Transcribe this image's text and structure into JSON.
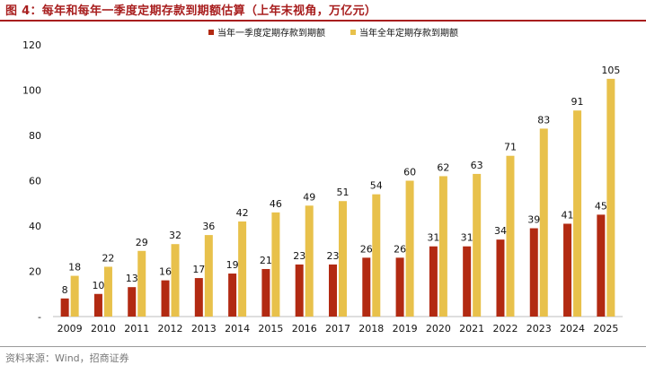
{
  "header": {
    "title": "图 4：每年和每年一季度定期存款到期额估算（上年末视角，万亿元）"
  },
  "footer": {
    "source": "资料来源：Wind，招商证券"
  },
  "chart_data": {
    "type": "bar",
    "categories": [
      "2009",
      "2010",
      "2011",
      "2012",
      "2013",
      "2014",
      "2015",
      "2016",
      "2017",
      "2018",
      "2019",
      "2020",
      "2021",
      "2022",
      "2023",
      "2024",
      "2025"
    ],
    "series": [
      {
        "name": "当年一季度定期存款到期额",
        "color": "#b22a12",
        "values": [
          8,
          10,
          13,
          16,
          17,
          19,
          21,
          23,
          23,
          26,
          26,
          31,
          31,
          34,
          39,
          41,
          45
        ]
      },
      {
        "name": "当年全年定期存款到期额",
        "color": "#e8c14b",
        "values": [
          18,
          22,
          29,
          32,
          36,
          42,
          46,
          49,
          51,
          54,
          60,
          62,
          63,
          71,
          83,
          91,
          105
        ]
      }
    ],
    "ylim": [
      0,
      120
    ],
    "yticks": [
      0,
      20,
      40,
      60,
      80,
      100,
      120
    ],
    "ytick_labels": [
      "-",
      "20",
      "40",
      "60",
      "80",
      "100",
      "120"
    ],
    "legend": "top-center",
    "grid": false
  }
}
